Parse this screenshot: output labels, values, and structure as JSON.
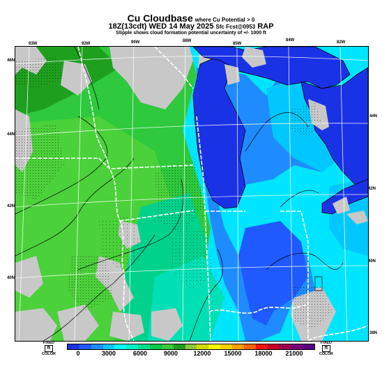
{
  "header": {
    "title": "Cu Cloudbase",
    "title_sub": "where Cu Potential > 0",
    "line2_main": "18Z(13cdt) WED 14 May 2025",
    "line2_small": "Sfc Fcst@0953",
    "line2_model": "RAP",
    "line3": "Stipple shows cloud formation potential uncertainty of +/- 1000 ft"
  },
  "map": {
    "top_lon_labels": [
      "93W",
      "92W",
      "90W",
      "88W",
      "85W",
      "84W",
      "82W"
    ],
    "left_lat_labels": [
      "46N",
      "44N",
      "42N",
      "40N"
    ],
    "right_lat_labels": [
      "44N",
      "42N",
      "40N",
      "38N"
    ]
  },
  "legend": {
    "labels": [
      "0",
      "3000",
      "6000",
      "9000",
      "12000",
      "15000",
      "18000",
      "21000"
    ],
    "colors": [
      "#1a32e6",
      "#1f5aff",
      "#1e8cff",
      "#00c8ff",
      "#00ffff",
      "#00f0c8",
      "#00e08c",
      "#00c84b",
      "#3cc83c",
      "#1ea01e",
      "#8cc83c",
      "#d2dc00",
      "#ffff00",
      "#ffd200",
      "#ffa000",
      "#ff6400",
      "#f01414",
      "#c80028",
      "#a00050",
      "#780078",
      "#5a0082"
    ],
    "left_fixed": "FIXED",
    "left_unit": "ft",
    "left_color": "COLOR",
    "right_fixed": "FIXED",
    "right_unit": "ft",
    "right_color": "COLOR"
  }
}
